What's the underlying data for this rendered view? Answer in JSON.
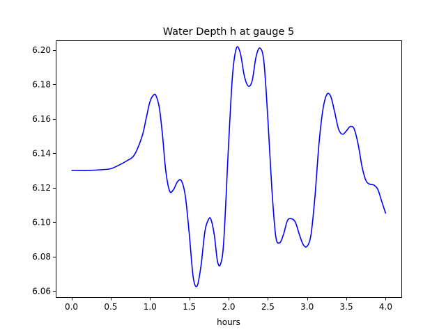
{
  "chart_data": {
    "type": "line",
    "title": "Water Depth h at gauge 5",
    "xlabel": "hours",
    "ylabel": "",
    "xlim": [
      -0.2,
      4.2
    ],
    "ylim": [
      6.0565,
      6.2055
    ],
    "grid": false,
    "xticks": [
      0.0,
      0.5,
      1.0,
      1.5,
      2.0,
      2.5,
      3.0,
      3.5,
      4.0
    ],
    "xtick_labels": [
      "0.0",
      "0.5",
      "1.0",
      "1.5",
      "2.0",
      "2.5",
      "3.0",
      "3.5",
      "4.0"
    ],
    "yticks": [
      6.06,
      6.08,
      6.1,
      6.12,
      6.14,
      6.16,
      6.18,
      6.2
    ],
    "ytick_labels": [
      "6.06",
      "6.08",
      "6.10",
      "6.12",
      "6.14",
      "6.16",
      "6.18",
      "6.20"
    ],
    "series": [
      {
        "color": "#0000ff",
        "x": [
          0.0,
          0.2,
          0.4,
          0.5,
          0.6,
          0.7,
          0.8,
          0.9,
          0.95,
          1.0,
          1.05,
          1.08,
          1.12,
          1.16,
          1.2,
          1.25,
          1.3,
          1.35,
          1.4,
          1.45,
          1.5,
          1.55,
          1.6,
          1.65,
          1.7,
          1.75,
          1.78,
          1.82,
          1.86,
          1.9,
          1.94,
          2.0,
          2.05,
          2.1,
          2.15,
          2.2,
          2.25,
          2.3,
          2.35,
          2.4,
          2.45,
          2.5,
          2.55,
          2.6,
          2.65,
          2.7,
          2.75,
          2.8,
          2.85,
          2.9,
          2.95,
          3.0,
          3.05,
          3.1,
          3.15,
          3.2,
          3.25,
          3.3,
          3.35,
          3.4,
          3.45,
          3.5,
          3.55,
          3.6,
          3.65,
          3.7,
          3.75,
          3.8,
          3.85,
          3.9,
          3.95,
          4.0
        ],
        "y": [
          6.13,
          6.13,
          6.1305,
          6.131,
          6.133,
          6.1355,
          6.139,
          6.15,
          6.16,
          6.17,
          6.174,
          6.173,
          6.166,
          6.15,
          6.13,
          6.118,
          6.119,
          6.1235,
          6.124,
          6.115,
          6.093,
          6.068,
          6.063,
          6.075,
          6.095,
          6.102,
          6.101,
          6.092,
          6.077,
          6.076,
          6.09,
          6.145,
          6.185,
          6.201,
          6.198,
          6.185,
          6.179,
          6.182,
          6.196,
          6.201,
          6.193,
          6.16,
          6.12,
          6.092,
          6.088,
          6.093,
          6.101,
          6.102,
          6.1,
          6.093,
          6.087,
          6.086,
          6.093,
          6.115,
          6.145,
          6.165,
          6.174,
          6.173,
          6.164,
          6.154,
          6.151,
          6.153,
          6.1555,
          6.154,
          6.145,
          6.132,
          6.124,
          6.122,
          6.1215,
          6.119,
          6.112,
          6.105
        ]
      }
    ]
  }
}
